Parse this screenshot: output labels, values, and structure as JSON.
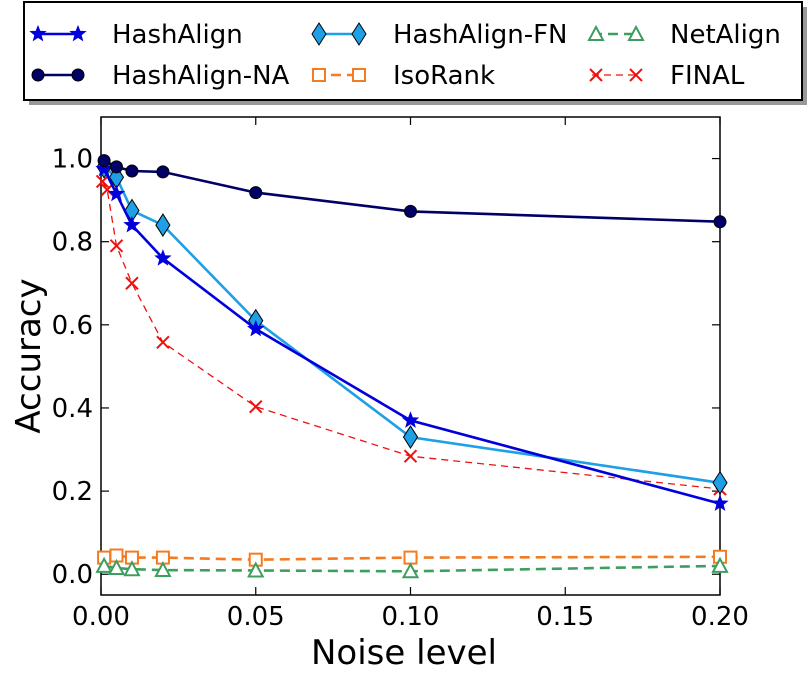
{
  "chart_data": {
    "type": "line",
    "title": "",
    "xlabel": "Noise level",
    "ylabel": "Accuracy",
    "xlim": [
      0.0,
      0.2
    ],
    "ylim": [
      -0.05,
      1.1
    ],
    "x_ticks": [
      "0.00",
      "0.05",
      "0.10",
      "0.15",
      "0.20"
    ],
    "y_ticks": [
      "0.0",
      "0.2",
      "0.4",
      "0.6",
      "0.8",
      "1.0"
    ],
    "grid": false,
    "legend_position": "top, outside plot",
    "series": [
      {
        "name": "HashAlign",
        "color": "#0000dd",
        "marker": "star",
        "dash": "solid",
        "x": [
          0.001,
          0.005,
          0.01,
          0.02,
          0.05,
          0.1,
          0.2
        ],
        "y": [
          0.975,
          0.915,
          0.84,
          0.76,
          0.59,
          0.37,
          0.17
        ]
      },
      {
        "name": "HashAlign-NA",
        "color": "#000066",
        "marker": "circle",
        "dash": "solid",
        "x": [
          0.001,
          0.005,
          0.01,
          0.02,
          0.05,
          0.1,
          0.2
        ],
        "y": [
          0.995,
          0.98,
          0.97,
          0.968,
          0.918,
          0.873,
          0.848
        ]
      },
      {
        "name": "HashAlign-FN",
        "color": "#1e9fe6",
        "marker": "diamond",
        "dash": "solid",
        "x": [
          0.001,
          0.005,
          0.01,
          0.02,
          0.05,
          0.1,
          0.2
        ],
        "y": [
          0.98,
          0.955,
          0.875,
          0.84,
          0.61,
          0.33,
          0.22
        ]
      },
      {
        "name": "IsoRank",
        "color": "#f47b20",
        "marker": "square",
        "dash": "dashed",
        "x": [
          0.001,
          0.005,
          0.01,
          0.02,
          0.05,
          0.1,
          0.2
        ],
        "y": [
          0.04,
          0.045,
          0.04,
          0.04,
          0.035,
          0.04,
          0.042
        ]
      },
      {
        "name": "NetAlign",
        "color": "#3d9e5f",
        "marker": "triangle",
        "dash": "dashed",
        "x": [
          0.001,
          0.005,
          0.01,
          0.02,
          0.05,
          0.1,
          0.2
        ],
        "y": [
          0.02,
          0.015,
          0.012,
          0.01,
          0.009,
          0.007,
          0.02
        ]
      },
      {
        "name": "FINAL",
        "color": "#ee1111",
        "marker": "x",
        "dash": "thin-dashed",
        "x": [
          0.0005,
          0.002,
          0.005,
          0.01,
          0.02,
          0.05,
          0.1,
          0.2
        ],
        "y": [
          0.945,
          0.925,
          0.79,
          0.7,
          0.558,
          0.403,
          0.284,
          0.205
        ]
      }
    ]
  }
}
